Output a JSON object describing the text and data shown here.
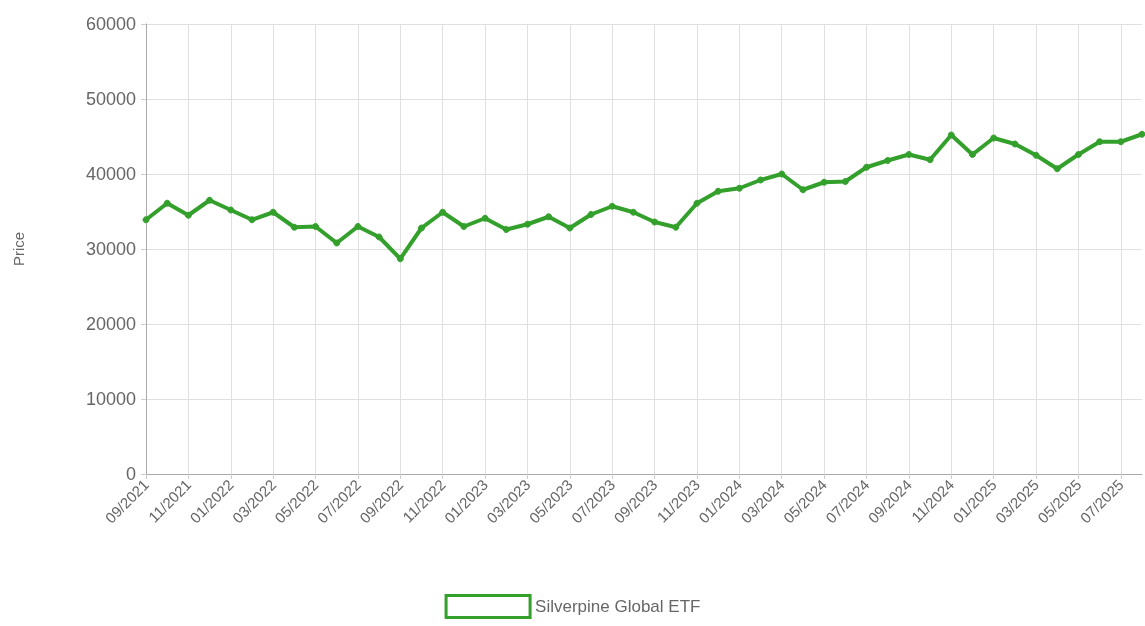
{
  "chart_data": {
    "type": "line",
    "ylabel": "Price",
    "categories": [
      "09/2021",
      null,
      "11/2021",
      null,
      "01/2022",
      null,
      "03/2022",
      null,
      "05/2022",
      null,
      "07/2022",
      null,
      "09/2022",
      null,
      "11/2022",
      null,
      "01/2023",
      null,
      "03/2023",
      null,
      "05/2023",
      null,
      "07/2023",
      null,
      "09/2023",
      null,
      "11/2023",
      null,
      "01/2024",
      null,
      "03/2024",
      null,
      "05/2024",
      null,
      "07/2024",
      null,
      "09/2024",
      null,
      "11/2024",
      null,
      "01/2025",
      null,
      "03/2025",
      null,
      "05/2025",
      null,
      "07/2025",
      null
    ],
    "series": [
      {
        "name": "Silverpine Global ETF",
        "color": "#33a02c",
        "values": [
          33900,
          36100,
          34500,
          36500,
          35200,
          33900,
          34900,
          32900,
          33000,
          30800,
          33000,
          31600,
          28700,
          32800,
          34900,
          33000,
          34100,
          32600,
          33300,
          34300,
          32800,
          34600,
          35700,
          34900,
          33600,
          32900,
          36100,
          37700,
          38100,
          39200,
          40000,
          37900,
          38900,
          39000,
          40900,
          41800,
          42600,
          41900,
          45200,
          42600,
          44800,
          44000,
          42500,
          40700,
          42600,
          44300,
          44300,
          45300
        ]
      }
    ],
    "ylim": [
      0,
      60000
    ],
    "yticks": [
      0,
      10000,
      20000,
      30000,
      40000,
      50000,
      60000
    ],
    "grid": true,
    "legend": "bottom",
    "marker": "circle",
    "line_style": "solid"
  }
}
